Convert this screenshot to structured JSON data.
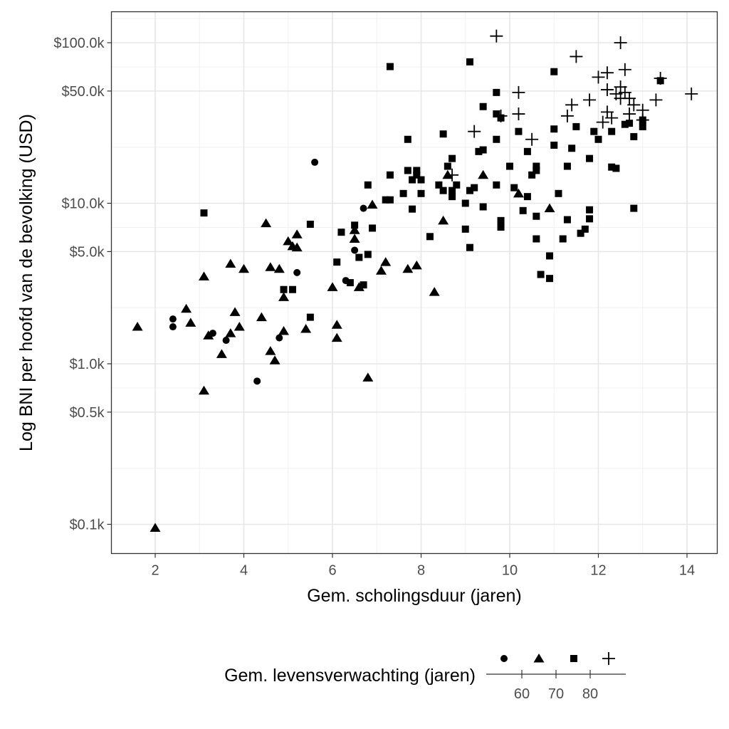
{
  "chart_data": {
    "type": "scatter",
    "title": "",
    "xlabel": "Gem. scholingsduur (jaren)",
    "ylabel": "Log BNI per hoofd van de bevolking (USD)",
    "x_scale": "linear",
    "y_scale": "log10",
    "xlim": [
      1.3,
      14.5
    ],
    "ylim": [
      80,
      140000
    ],
    "grid": true,
    "x_ticks": [
      2,
      4,
      6,
      8,
      10,
      12,
      14
    ],
    "x_tick_labels": [
      "2",
      "4",
      "6",
      "8",
      "10",
      "12",
      "14"
    ],
    "y_ticks": [
      100,
      500,
      1000,
      5000,
      10000,
      50000,
      100000
    ],
    "y_tick_labels": [
      "$0.1k",
      "$0.5k",
      "$1.0k",
      "$5.0k",
      "$10.0k",
      "$50.0k",
      "$100.0k"
    ],
    "legend": {
      "title": "Gem. levensverwachting (jaren)",
      "position": "bottom",
      "shapes": [
        "circle",
        "triangle",
        "square",
        "plus"
      ],
      "scale_ticks": [
        "60",
        "70",
        "80"
      ]
    },
    "series": [
      {
        "name": "circle",
        "shape": "circle",
        "points": [
          [
            2.4,
            1900
          ],
          [
            2.4,
            1700
          ],
          [
            3.3,
            1550
          ],
          [
            3.6,
            1400
          ],
          [
            4.3,
            780
          ],
          [
            4.8,
            1450
          ],
          [
            5.2,
            3700
          ],
          [
            5.6,
            18000
          ],
          [
            6.3,
            3300
          ],
          [
            6.5,
            5100
          ],
          [
            6.7,
            9300
          ]
        ]
      },
      {
        "name": "triangle",
        "shape": "triangle",
        "points": [
          [
            1.6,
            1700
          ],
          [
            2.0,
            95
          ],
          [
            2.7,
            2200
          ],
          [
            2.8,
            1800
          ],
          [
            3.1,
            680
          ],
          [
            3.1,
            3500
          ],
          [
            3.2,
            1500
          ],
          [
            3.5,
            1150
          ],
          [
            3.7,
            1550
          ],
          [
            3.7,
            4200
          ],
          [
            3.8,
            2100
          ],
          [
            3.9,
            1700
          ],
          [
            4.0,
            3900
          ],
          [
            4.4,
            1950
          ],
          [
            4.5,
            7500
          ],
          [
            4.6,
            4000
          ],
          [
            4.6,
            1200
          ],
          [
            4.7,
            1050
          ],
          [
            4.8,
            3900
          ],
          [
            4.9,
            1600
          ],
          [
            4.9,
            2600
          ],
          [
            5.0,
            5800
          ],
          [
            5.1,
            5400
          ],
          [
            5.2,
            6400
          ],
          [
            5.2,
            5300
          ],
          [
            5.4,
            1650
          ],
          [
            6.0,
            3000
          ],
          [
            6.1,
            1750
          ],
          [
            6.1,
            1450
          ],
          [
            6.5,
            6800
          ],
          [
            6.5,
            6000
          ],
          [
            6.6,
            3000
          ],
          [
            6.8,
            820
          ],
          [
            6.9,
            9800
          ],
          [
            7.1,
            3800
          ],
          [
            7.2,
            4300
          ],
          [
            7.7,
            3900
          ],
          [
            7.9,
            4100
          ],
          [
            8.3,
            2800
          ],
          [
            8.5,
            7800
          ],
          [
            8.6,
            15000
          ],
          [
            9.4,
            15000
          ],
          [
            10.2,
            11500
          ],
          [
            10.9,
            9300
          ]
        ]
      },
      {
        "name": "square",
        "shape": "square",
        "points": [
          [
            3.1,
            8700
          ],
          [
            4.9,
            2900
          ],
          [
            5.1,
            2900
          ],
          [
            5.5,
            7400
          ],
          [
            5.5,
            1950
          ],
          [
            6.1,
            4300
          ],
          [
            6.2,
            6600
          ],
          [
            6.4,
            3200
          ],
          [
            6.5,
            7300
          ],
          [
            6.6,
            4600
          ],
          [
            6.7,
            3100
          ],
          [
            6.8,
            13000
          ],
          [
            6.8,
            4800
          ],
          [
            6.9,
            7000
          ],
          [
            7.2,
            10500
          ],
          [
            7.3,
            10500
          ],
          [
            7.3,
            15000
          ],
          [
            7.3,
            71000
          ],
          [
            7.6,
            11500
          ],
          [
            7.7,
            25000
          ],
          [
            7.7,
            16000
          ],
          [
            7.8,
            9200
          ],
          [
            7.8,
            14000
          ],
          [
            7.9,
            16000
          ],
          [
            7.9,
            15000
          ],
          [
            8.0,
            11500
          ],
          [
            8.0,
            14000
          ],
          [
            8.2,
            6200
          ],
          [
            8.4,
            13000
          ],
          [
            8.5,
            12000
          ],
          [
            8.5,
            27000
          ],
          [
            8.6,
            17000
          ],
          [
            8.7,
            19000
          ],
          [
            8.7,
            12000
          ],
          [
            8.7,
            11000
          ],
          [
            8.8,
            13000
          ],
          [
            9.0,
            10000
          ],
          [
            9.0,
            6900
          ],
          [
            9.1,
            76000
          ],
          [
            9.1,
            12000
          ],
          [
            9.1,
            5300
          ],
          [
            9.2,
            12500
          ],
          [
            9.3,
            21000
          ],
          [
            9.4,
            40000
          ],
          [
            9.4,
            9500
          ],
          [
            9.4,
            21500
          ],
          [
            9.7,
            13000
          ],
          [
            9.7,
            25000
          ],
          [
            9.7,
            36000
          ],
          [
            9.7,
            49000
          ],
          [
            9.8,
            7800
          ],
          [
            9.8,
            7100
          ],
          [
            9.8,
            34000
          ],
          [
            10.0,
            17000
          ],
          [
            10.1,
            12500
          ],
          [
            10.2,
            28000
          ],
          [
            10.3,
            9000
          ],
          [
            10.4,
            21000
          ],
          [
            10.4,
            11000
          ],
          [
            10.5,
            15000
          ],
          [
            10.6,
            8300
          ],
          [
            10.6,
            17000
          ],
          [
            10.6,
            16000
          ],
          [
            10.6,
            6000
          ],
          [
            10.7,
            3600
          ],
          [
            10.9,
            4700
          ],
          [
            10.9,
            3400
          ],
          [
            11.0,
            66000
          ],
          [
            11.0,
            29000
          ],
          [
            11.0,
            23000
          ],
          [
            11.1,
            11500
          ],
          [
            11.2,
            6000
          ],
          [
            11.3,
            7900
          ],
          [
            11.3,
            17000
          ],
          [
            11.4,
            22000
          ],
          [
            11.5,
            30000
          ],
          [
            11.6,
            6500
          ],
          [
            11.7,
            6900
          ],
          [
            11.8,
            8000
          ],
          [
            11.8,
            9100
          ],
          [
            11.8,
            19000
          ],
          [
            11.9,
            28000
          ],
          [
            12.0,
            25000
          ],
          [
            12.3,
            16800
          ],
          [
            12.3,
            28000
          ],
          [
            12.4,
            16500
          ],
          [
            12.6,
            31000
          ],
          [
            12.7,
            31500
          ],
          [
            12.8,
            26000
          ],
          [
            12.8,
            9300
          ],
          [
            13.0,
            33000
          ],
          [
            13.0,
            30000
          ],
          [
            13.4,
            58000
          ]
        ]
      },
      {
        "name": "plus",
        "shape": "plus",
        "points": [
          [
            8.7,
            15000
          ],
          [
            9.2,
            28000
          ],
          [
            9.7,
            110000
          ],
          [
            9.8,
            35000
          ],
          [
            10.2,
            49000
          ],
          [
            10.2,
            36000
          ],
          [
            10.5,
            25000
          ],
          [
            11.3,
            35000
          ],
          [
            11.4,
            41000
          ],
          [
            11.5,
            82000
          ],
          [
            11.8,
            44000
          ],
          [
            12.0,
            61000
          ],
          [
            12.1,
            32000
          ],
          [
            12.2,
            65000
          ],
          [
            12.2,
            51000
          ],
          [
            12.2,
            37000
          ],
          [
            12.3,
            34000
          ],
          [
            12.4,
            48000
          ],
          [
            12.5,
            100000
          ],
          [
            12.5,
            45000
          ],
          [
            12.5,
            53000
          ],
          [
            12.6,
            68000
          ],
          [
            12.6,
            49000
          ],
          [
            12.7,
            45000
          ],
          [
            12.7,
            36000
          ],
          [
            12.8,
            41000
          ],
          [
            13.0,
            38000
          ],
          [
            13.0,
            33000
          ],
          [
            13.3,
            44000
          ],
          [
            13.4,
            60000
          ],
          [
            14.1,
            48000
          ]
        ]
      }
    ]
  }
}
